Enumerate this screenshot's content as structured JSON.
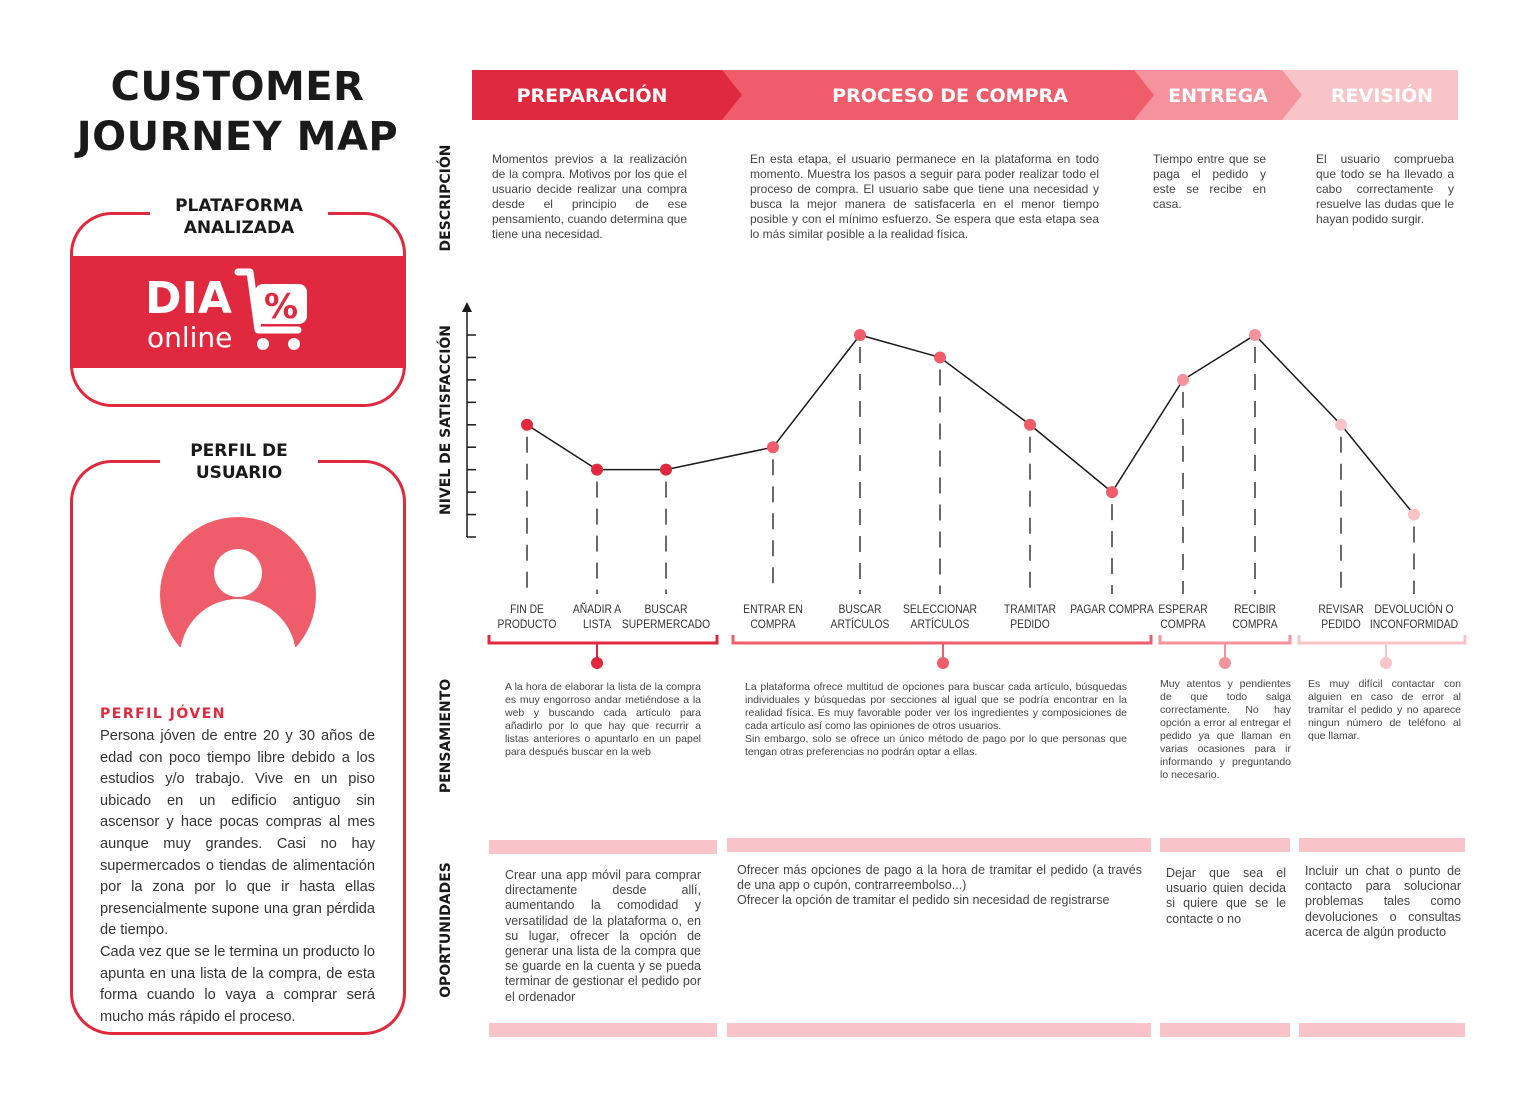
{
  "title": {
    "line1": "CUSTOMER",
    "line2": "JOURNEY MAP"
  },
  "platform": {
    "label_line1": "PLATAFORMA",
    "label_line2": "ANALIZADA",
    "logo_word": "DIA",
    "logo_sub": "online",
    "logo_symbol": "%"
  },
  "profile": {
    "label_line1": "PERFIL DE",
    "label_line2": "USUARIO",
    "avatar_icon": "user-silhouette-icon",
    "heading": "PERFIL JÓVEN",
    "text": "Persona jóven de entre 20 y 30 años de edad con poco tiempo libre debido a los estudios y/o trabajo. Vive en un piso ubicado en un edificio antiguo sin ascensor y hace pocas compras al mes aunque muy grandes. Casi no hay supermercados o tiendas de alimentación por la zona por lo que ir hasta ellas presencialmente supone una gran pérdida de tiempo.",
    "text2": "Cada vez que se le termina un producto lo apunta en una lista de la compra, de esta forma cuando lo vaya a comprar será mucho más rápido el proceso."
  },
  "colors": {
    "preparacion": "#e0283e",
    "proceso": "#ef5d6a",
    "entrega": "#f4939b",
    "revision": "#f9c4c8",
    "line": "#1a1a1a"
  },
  "row_labels": {
    "descripcion": "DESCRIPCIÓN",
    "satisfaccion": "NIVEL DE SATISFACCIÓN",
    "pensamiento": "PENSAMIENTO",
    "oportunidades": "OPORTUNIDADES"
  },
  "phases": [
    {
      "name": "PREPARACIÓN",
      "description": "Momentos previos a la realización de la compra. Motivos por los que el usuario decide realizar una compra desde el principio de ese pensamiento, cuando determina que tiene una necesidad.",
      "thought": "A la hora de elaborar la lista de la compra es muy engorroso andar metiéndose a la web y buscando cada artículo para añadirlo por lo que hay que recurrir a listas anteriores o apuntarlo en un papel para después buscar en la web",
      "opportunity": "Crear una app móvil para comprar directamente desde allí, aumentando la comodidad y versatilidad de la plataforma o, en su lugar, ofrecer la opción de generar una lista de la compra que se guarde en la cuenta y se pueda terminar de gestionar el pedido por el ordenador"
    },
    {
      "name": "PROCESO DE COMPRA",
      "description": "En esta etapa, el usuario permanece en la plataforma en todo momento. Muestra los pasos a seguir para poder realizar todo el proceso de compra. El usuario sabe que tiene una necesidad y busca la mejor manera de satisfacerla en el menor tiempo posible y con el mínimo esfuerzo. Se espera que esta etapa sea lo más similar posible a la realidad física.",
      "thought": "La plataforma ofrece multitud de opciones para buscar cada artículo, búsquedas individuales y búsquedas por secciones al igual que se podría encontrar en la realidad física. Es muy favorable poder ver los ingredientes y composiciones de cada artículo así como las opiniones de otros usuarios.",
      "thought2": "Sin embargo, solo se ofrece un único método de pago por lo que personas que tengan otras preferencias no podrán optar a ellas.",
      "opportunity": "Ofrecer más opciones de pago a la hora de tramitar el pedido (a través de una app o cupón, contrarreembolso...)",
      "opportunity2": "Ofrecer la opción de tramitar el pedido sin necesidad de registrarse"
    },
    {
      "name": "ENTREGA",
      "description": "Tiempo entre que se paga el pedido y este se recibe en casa.",
      "thought": "Muy atentos y pendientes de que todo salga correctamente. No hay opción a error al entregar el pedido ya que llaman en varias ocasiones para ir informando y preguntando lo necesario.",
      "opportunity": "Dejar que sea el usuario quien decida si quiere que se le contacte o no"
    },
    {
      "name": "REVISIÓN",
      "description": "El usuario comprueba que todo se ha llevado a cabo correctamente y resuelve las dudas que le hayan podido surgir.",
      "thought": "Es muy difícil contactar con alguien en caso de error al tramitar el pedido y no aparece ningun número de teléfono al que llamar.",
      "opportunity": "Incluir un chat o punto de contacto para solucionar problemas tales como devoluciones o consultas acerca de algún producto"
    }
  ],
  "chart_data": {
    "type": "line",
    "ylabel": "NIVEL DE SATISFACCIÓN",
    "ylim": [
      0,
      9
    ],
    "points": [
      {
        "label1": "FIN DE",
        "label2": "PRODUCTO",
        "value": 5,
        "phase": 0
      },
      {
        "label1": "AÑADIR A",
        "label2": "LISTA",
        "value": 3,
        "phase": 0
      },
      {
        "label1": "BUSCAR",
        "label2": "SUPERMERCADO",
        "value": 3,
        "phase": 0
      },
      {
        "label1": "ENTRAR EN",
        "label2": "COMPRA",
        "value": 4,
        "phase": 1
      },
      {
        "label1": "BUSCAR",
        "label2": "ARTÍCULOS",
        "value": 9,
        "phase": 1
      },
      {
        "label1": "SELECCIONAR",
        "label2": "ARTÍCULOS",
        "value": 8,
        "phase": 1
      },
      {
        "label1": "TRAMITAR",
        "label2": "PEDIDO",
        "value": 5,
        "phase": 1
      },
      {
        "label1": "PAGAR COMPRA",
        "label2": "",
        "value": 2,
        "phase": 1
      },
      {
        "label1": "ESPERAR",
        "label2": "COMPRA",
        "value": 7,
        "phase": 2
      },
      {
        "label1": "RECIBIR",
        "label2": "COMPRA",
        "value": 9,
        "phase": 2
      },
      {
        "label1": "REVISAR",
        "label2": "PEDIDO",
        "value": 5,
        "phase": 3
      },
      {
        "label1": "DEVOLUCIÓN O",
        "label2": "INCONFORMIDAD",
        "value": 1,
        "phase": 3
      }
    ]
  }
}
